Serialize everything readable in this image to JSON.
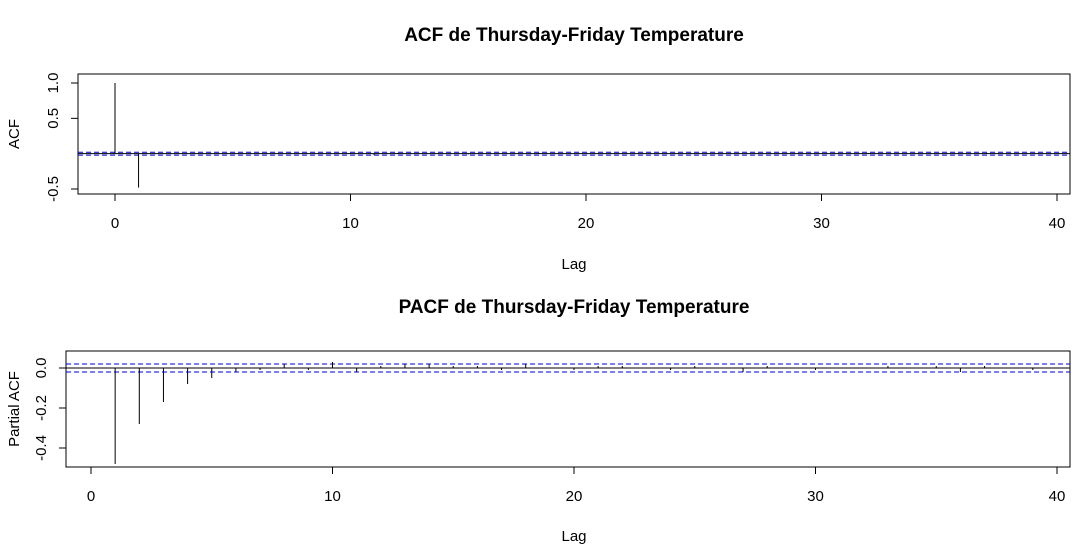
{
  "chart_data": [
    {
      "type": "bar",
      "title": "ACF de Thursday-Friday Temperature",
      "xlabel": "Lag",
      "ylabel": "ACF",
      "xlim": [
        0,
        40
      ],
      "ylim": [
        -0.5,
        1.0
      ],
      "x_ticks": [
        "0",
        "10",
        "20",
        "30",
        "40"
      ],
      "y_ticks": [
        "-0.5",
        "0.5",
        "1.0"
      ],
      "confidence_band": [
        -0.02,
        0.02
      ],
      "lags": [
        0,
        1,
        2,
        3,
        4,
        5,
        6,
        7,
        8,
        9,
        10,
        11,
        12,
        13,
        14,
        15,
        16,
        17,
        18,
        19,
        20,
        21,
        22,
        23,
        24,
        25,
        26,
        27,
        28,
        29,
        30,
        31,
        32,
        33,
        34,
        35,
        36,
        37,
        38,
        39,
        40
      ],
      "values": [
        1.0,
        -0.48,
        0.0,
        0.0,
        0.0,
        0.0,
        0.0,
        0.0,
        0.0,
        0.0,
        0.01,
        -0.02,
        0.01,
        0.0,
        0.0,
        -0.01,
        0.0,
        0.0,
        0.01,
        0.0,
        0.0,
        0.0,
        0.0,
        0.0,
        0.0,
        0.0,
        0.0,
        0.0,
        0.0,
        0.0,
        0.0,
        0.0,
        0.01,
        0.0,
        0.0,
        0.0,
        0.0,
        0.01,
        0.0,
        0.0,
        0.0
      ],
      "grid": false,
      "colors": {
        "bars": "#000000",
        "confidence_band": "#0000cc"
      }
    },
    {
      "type": "bar",
      "title": "PACF de Thursday-Friday Temperature",
      "xlabel": "Lag",
      "ylabel": "Partial ACF",
      "xlim": [
        0,
        40
      ],
      "ylim": [
        -0.5,
        0.08
      ],
      "x_ticks": [
        "0",
        "10",
        "20",
        "30",
        "40"
      ],
      "y_ticks": [
        "-0.4",
        "-0.2",
        "0.0"
      ],
      "confidence_band": [
        -0.02,
        0.02
      ],
      "lags": [
        1,
        2,
        3,
        4,
        5,
        6,
        7,
        8,
        9,
        10,
        11,
        12,
        13,
        14,
        15,
        16,
        17,
        18,
        19,
        20,
        21,
        22,
        23,
        24,
        25,
        26,
        27,
        28,
        29,
        30,
        31,
        32,
        33,
        34,
        35,
        36,
        37,
        38,
        39,
        40
      ],
      "values": [
        -0.48,
        -0.28,
        -0.17,
        -0.08,
        -0.05,
        -0.02,
        -0.01,
        0.02,
        -0.01,
        0.03,
        -0.02,
        0.01,
        0.02,
        0.02,
        0.01,
        0.01,
        -0.01,
        0.02,
        0.0,
        -0.01,
        0.01,
        0.01,
        0.0,
        -0.01,
        0.01,
        0.0,
        -0.02,
        0.01,
        0.0,
        -0.01,
        0.0,
        0.0,
        0.01,
        0.0,
        0.01,
        -0.02,
        0.01,
        0.0,
        -0.01,
        0.0
      ],
      "grid": false,
      "colors": {
        "bars": "#000000",
        "confidence_band": "#0000cc"
      }
    }
  ]
}
